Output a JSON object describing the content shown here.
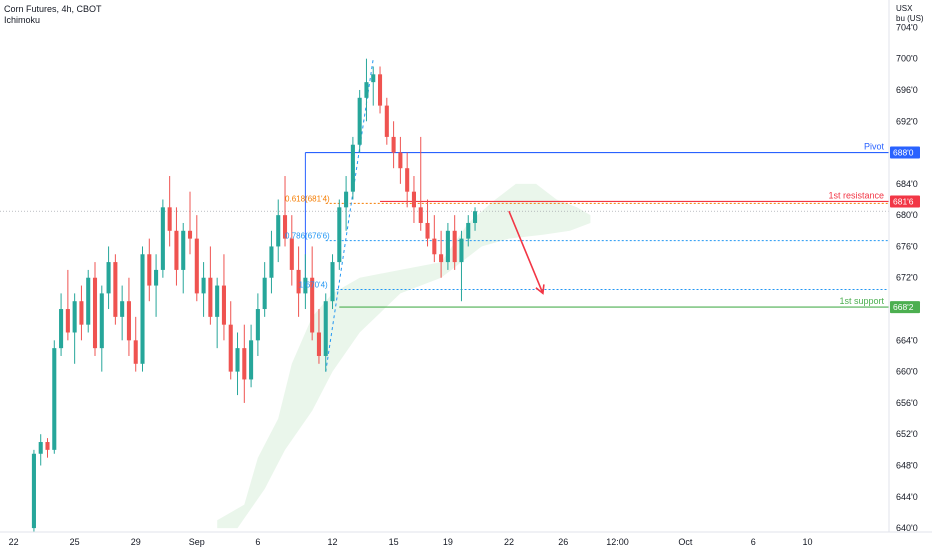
{
  "header": {
    "symbol_line": "Corn Futures, 4h, CBOT",
    "indicator": "Ichimoku"
  },
  "currency": {
    "line1": "USX",
    "line2": "bu (US)"
  },
  "colors": {
    "up": "#26a69a",
    "down": "#ef5350",
    "pivot": "#2962ff",
    "resistance": "#f23645",
    "support": "#4caf50",
    "cloud": "#e8f5e9",
    "fib_orange": "#f57c00",
    "fib_blue": "#2196f3"
  },
  "chart_data": {
    "type": "candlestick",
    "y_ticks": [
      "704'0",
      "700'0",
      "696'0",
      "692'0",
      "688'0",
      "684'0",
      "680'0",
      "676'0",
      "672'0",
      "668'0",
      "664'0",
      "660'0",
      "656'0",
      "652'0",
      "648'0",
      "644'0",
      "640'0"
    ],
    "y_tick_values": [
      704,
      700,
      696,
      692,
      688,
      684,
      680,
      676,
      672,
      668,
      664,
      660,
      656,
      652,
      648,
      644,
      640
    ],
    "ylim": [
      639.5,
      707.5
    ],
    "x_labels": [
      {
        "label": "22",
        "i": -3
      },
      {
        "label": "25",
        "i": 6
      },
      {
        "label": "29",
        "i": 15
      },
      {
        "label": "Sep",
        "i": 24
      },
      {
        "label": "6",
        "i": 33
      },
      {
        "label": "12",
        "i": 44
      },
      {
        "label": "15",
        "i": 53
      },
      {
        "label": "19",
        "i": 61
      },
      {
        "label": "22",
        "i": 70
      },
      {
        "label": "26",
        "i": 78
      },
      {
        "label": "12:00",
        "i": 86
      },
      {
        "label": "Oct",
        "i": 96
      },
      {
        "label": "6",
        "i": 106
      },
      {
        "label": "10",
        "i": 114
      }
    ],
    "x_range": [
      -5,
      126
    ],
    "levels": [
      {
        "name": "Pivot",
        "label": "688'0",
        "value": 688.0,
        "color": "#2962ff",
        "from_i": 40
      },
      {
        "name": "1st resistance",
        "label": "681'6",
        "value": 681.75,
        "color": "#f23645",
        "from_i": 51
      },
      {
        "name": "1st support",
        "label": "668'2",
        "value": 668.25,
        "color": "#4caf50",
        "from_i": 45
      }
    ],
    "fib_labels": [
      {
        "text": "0.618(681'4)",
        "value": 681.5,
        "color": "#f57c00",
        "i": 37
      },
      {
        "text": "0.786(676'6)",
        "value": 676.75,
        "color": "#2196f3",
        "i": 37
      },
      {
        "text": "1(670'4)",
        "value": 670.5,
        "color": "#2196f3",
        "i": 39
      }
    ],
    "fib_lines": [
      {
        "value": 681.5,
        "color": "#f57c00",
        "from_i": 43
      },
      {
        "value": 676.75,
        "color": "#2196f3",
        "from_i": 43
      },
      {
        "value": 670.5,
        "color": "#2196f3",
        "from_i": 44
      }
    ],
    "projection_arrow": {
      "from_i": 70,
      "from_v": 680.5,
      "to_i": 75,
      "to_v": 670.0,
      "color": "#f23645"
    },
    "fib_diag": [
      {
        "i": 43,
        "v": 660
      },
      {
        "i": 50,
        "v": 700
      }
    ],
    "cloud_top": [
      {
        "i": 27,
        "v": 641
      },
      {
        "i": 31,
        "v": 643
      },
      {
        "i": 33,
        "v": 649
      },
      {
        "i": 36,
        "v": 654
      },
      {
        "i": 38,
        "v": 661
      },
      {
        "i": 41,
        "v": 667
      },
      {
        "i": 44,
        "v": 670
      },
      {
        "i": 48,
        "v": 672
      },
      {
        "i": 54,
        "v": 673
      },
      {
        "i": 60,
        "v": 674
      },
      {
        "i": 64,
        "v": 679
      },
      {
        "i": 68,
        "v": 682
      },
      {
        "i": 71,
        "v": 684
      },
      {
        "i": 74,
        "v": 684
      },
      {
        "i": 77,
        "v": 682
      },
      {
        "i": 80,
        "v": 681
      },
      {
        "i": 82,
        "v": 680
      }
    ],
    "cloud_bottom": [
      {
        "i": 82,
        "v": 679
      },
      {
        "i": 79,
        "v": 678
      },
      {
        "i": 75,
        "v": 677.5
      },
      {
        "i": 70,
        "v": 677
      },
      {
        "i": 66,
        "v": 676
      },
      {
        "i": 60,
        "v": 672
      },
      {
        "i": 54,
        "v": 670
      },
      {
        "i": 48,
        "v": 665
      },
      {
        "i": 44,
        "v": 660
      },
      {
        "i": 41,
        "v": 655
      },
      {
        "i": 37,
        "v": 650
      },
      {
        "i": 34,
        "v": 645
      },
      {
        "i": 30,
        "v": 640
      },
      {
        "i": 27,
        "v": 640
      }
    ],
    "candles": [
      [
        640,
        650,
        639.5,
        649.5
      ],
      [
        649.5,
        652,
        648,
        651
      ],
      [
        651,
        651.5,
        649,
        650
      ],
      [
        650,
        664,
        649.5,
        663
      ],
      [
        663,
        670,
        662,
        668
      ],
      [
        668,
        673,
        664,
        665
      ],
      [
        665,
        670,
        661,
        669
      ],
      [
        669,
        671,
        664,
        666
      ],
      [
        666,
        673,
        665,
        672
      ],
      [
        672,
        674,
        662,
        663
      ],
      [
        663,
        671,
        660,
        670
      ],
      [
        670,
        676,
        668,
        674
      ],
      [
        674,
        675,
        666,
        667
      ],
      [
        667,
        671,
        664,
        669
      ],
      [
        669,
        672,
        662,
        664
      ],
      [
        664,
        667,
        660,
        661
      ],
      [
        661,
        676,
        660,
        675
      ],
      [
        675,
        677,
        669,
        671
      ],
      [
        671,
        675,
        667,
        673
      ],
      [
        673,
        682,
        672,
        681
      ],
      [
        681,
        685,
        676,
        678
      ],
      [
        678,
        681,
        671,
        673
      ],
      [
        673,
        679,
        670,
        678
      ],
      [
        678,
        683,
        675,
        677
      ],
      [
        677,
        680,
        669,
        670
      ],
      [
        670,
        674,
        667,
        672
      ],
      [
        672,
        676,
        666,
        667
      ],
      [
        667,
        672,
        663,
        671
      ],
      [
        671,
        675,
        664,
        666
      ],
      [
        666,
        669,
        659,
        660
      ],
      [
        660,
        665,
        657,
        663
      ],
      [
        663,
        666,
        656,
        659
      ],
      [
        659,
        666,
        658,
        664
      ],
      [
        664,
        670,
        662,
        668
      ],
      [
        668,
        674,
        667,
        672
      ],
      [
        672,
        678,
        670,
        676
      ],
      [
        676,
        682,
        674,
        680
      ],
      [
        680,
        685,
        676,
        677
      ],
      [
        677,
        680,
        671,
        673
      ],
      [
        673,
        676,
        667,
        670
      ],
      [
        670,
        675,
        668,
        672
      ],
      [
        672,
        676,
        664,
        665
      ],
      [
        665,
        668,
        661,
        662
      ],
      [
        662,
        670,
        660,
        669
      ],
      [
        669,
        675,
        668,
        674
      ],
      [
        674,
        682,
        673,
        681
      ],
      [
        681,
        685,
        678,
        683
      ],
      [
        683,
        690,
        682,
        689
      ],
      [
        689,
        696,
        688,
        695
      ],
      [
        695,
        700,
        692,
        697
      ],
      [
        697,
        699,
        694,
        698
      ],
      [
        698,
        699,
        693,
        694
      ],
      [
        694,
        695,
        689,
        690
      ],
      [
        690,
        692,
        686,
        688
      ],
      [
        688,
        690,
        684,
        686
      ],
      [
        686,
        688,
        681,
        683
      ],
      [
        683,
        685,
        679,
        681
      ],
      [
        681,
        690,
        678,
        679
      ],
      [
        679,
        682,
        676,
        677
      ],
      [
        677,
        680,
        674,
        675
      ],
      [
        675,
        678,
        672,
        674
      ],
      [
        674,
        679,
        673,
        678
      ],
      [
        678,
        680,
        673,
        674
      ],
      [
        674,
        678,
        669,
        677
      ],
      [
        677,
        680,
        676,
        679
      ],
      [
        679,
        681,
        678,
        680.5
      ]
    ],
    "last_price_value": 680.5
  }
}
